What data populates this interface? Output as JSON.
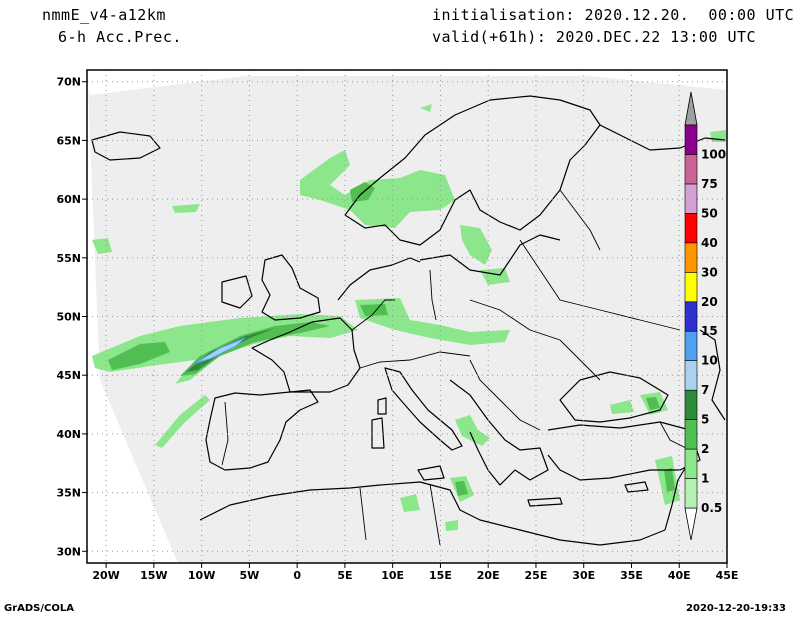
{
  "header": {
    "model": "nmmE_v4-a12km",
    "field": "6-h Acc.Prec.",
    "initialisation": "initialisation: 2020.12.20.  00:00 UTC",
    "valid": "valid(+61h): 2020.DEC.22 13:00 UTC"
  },
  "map": {
    "lon_range": [
      -22,
      45
    ],
    "lat_range": [
      29,
      71
    ],
    "lon_ticks": [
      {
        "value": -20,
        "label": "20W"
      },
      {
        "value": -15,
        "label": "15W"
      },
      {
        "value": -10,
        "label": "10W"
      },
      {
        "value": -5,
        "label": "5W"
      },
      {
        "value": 0,
        "label": "0"
      },
      {
        "value": 5,
        "label": "5E"
      },
      {
        "value": 10,
        "label": "10E"
      },
      {
        "value": 15,
        "label": "15E"
      },
      {
        "value": 20,
        "label": "20E"
      },
      {
        "value": 25,
        "label": "25E"
      },
      {
        "value": 30,
        "label": "30E"
      },
      {
        "value": 35,
        "label": "35E"
      },
      {
        "value": 40,
        "label": "40E"
      },
      {
        "value": 45,
        "label": "45E"
      }
    ],
    "lat_ticks": [
      {
        "value": 30,
        "label": "30N"
      },
      {
        "value": 35,
        "label": "35N"
      },
      {
        "value": 40,
        "label": "40N"
      },
      {
        "value": 45,
        "label": "45N"
      },
      {
        "value": 50,
        "label": "50N"
      },
      {
        "value": 55,
        "label": "55N"
      },
      {
        "value": 60,
        "label": "60N"
      },
      {
        "value": 65,
        "label": "65N"
      },
      {
        "value": 70,
        "label": "70N"
      }
    ],
    "grid": true,
    "domain_color": "#eeeeee",
    "coast_color": "#000000"
  },
  "colorbar": {
    "levels": [
      {
        "label": "0.5",
        "color": "#b4f0b4"
      },
      {
        "label": "1",
        "color": "#8ce68c"
      },
      {
        "label": "2",
        "color": "#50be50"
      },
      {
        "label": "5",
        "color": "#2e8b3a"
      },
      {
        "label": "7",
        "color": "#aad2f0"
      },
      {
        "label": "10",
        "color": "#50a0f0"
      },
      {
        "label": "15",
        "color": "#2d32d2"
      },
      {
        "label": "20",
        "color": "#ffff00"
      },
      {
        "label": "30",
        "color": "#ff9600"
      },
      {
        "label": "40",
        "color": "#ff0000"
      },
      {
        "label": "50",
        "color": "#d2a0d2"
      },
      {
        "label": "75",
        "color": "#c86496"
      },
      {
        "label": "100",
        "color": "#8c008c"
      }
    ],
    "top_color": "#a0a0a0"
  },
  "footer": {
    "credit": "GrADS/COLA",
    "timestamp": "2020-12-20-19:33"
  }
}
